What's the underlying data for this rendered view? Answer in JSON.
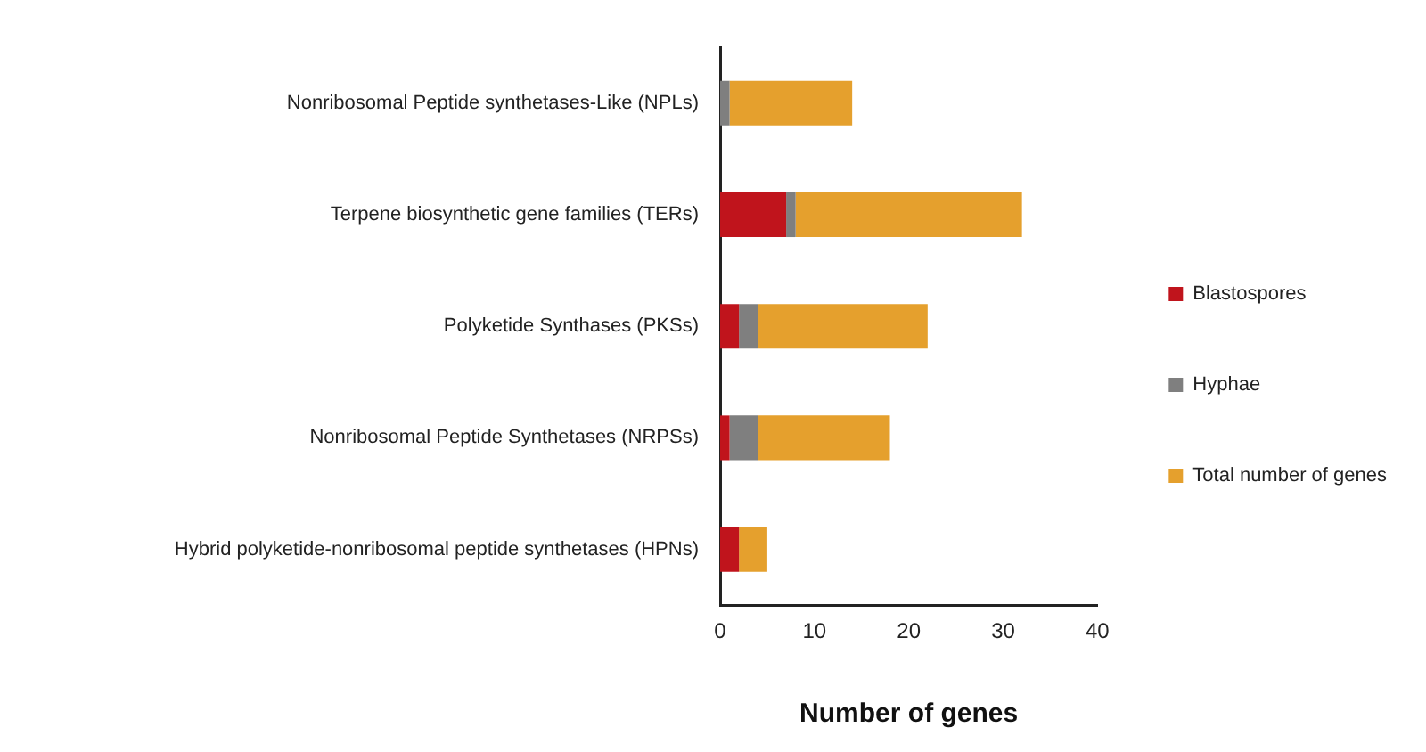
{
  "chart_data": {
    "type": "bar",
    "orientation": "horizontal",
    "stacked": true,
    "xlabel": "Number of genes",
    "categories": [
      "Nonribosomal Peptide synthetases-Like (NPLs)",
      "Terpene biosynthetic gene families (TERs)",
      "Polyketide Synthases (PKSs)",
      "Nonribosomal Peptide Synthetases (NRPSs)",
      "Hybrid polyketide-nonribosomal peptide synthetases (HPNs)"
    ],
    "series": [
      {
        "name": "Blastospores",
        "color": "#c0141c",
        "values": [
          0,
          7,
          2,
          1,
          2
        ]
      },
      {
        "name": "Hyphae",
        "color": "#7f7f7f",
        "values": [
          1,
          1,
          2,
          3,
          0
        ]
      },
      {
        "name": "Total number of genes",
        "color": "#e5a02d",
        "values": [
          13,
          24,
          18,
          14,
          3
        ]
      }
    ],
    "xlim": [
      0,
      40
    ],
    "xticks": [
      0,
      10,
      20,
      30,
      40
    ],
    "grid": false,
    "legend": "right"
  }
}
